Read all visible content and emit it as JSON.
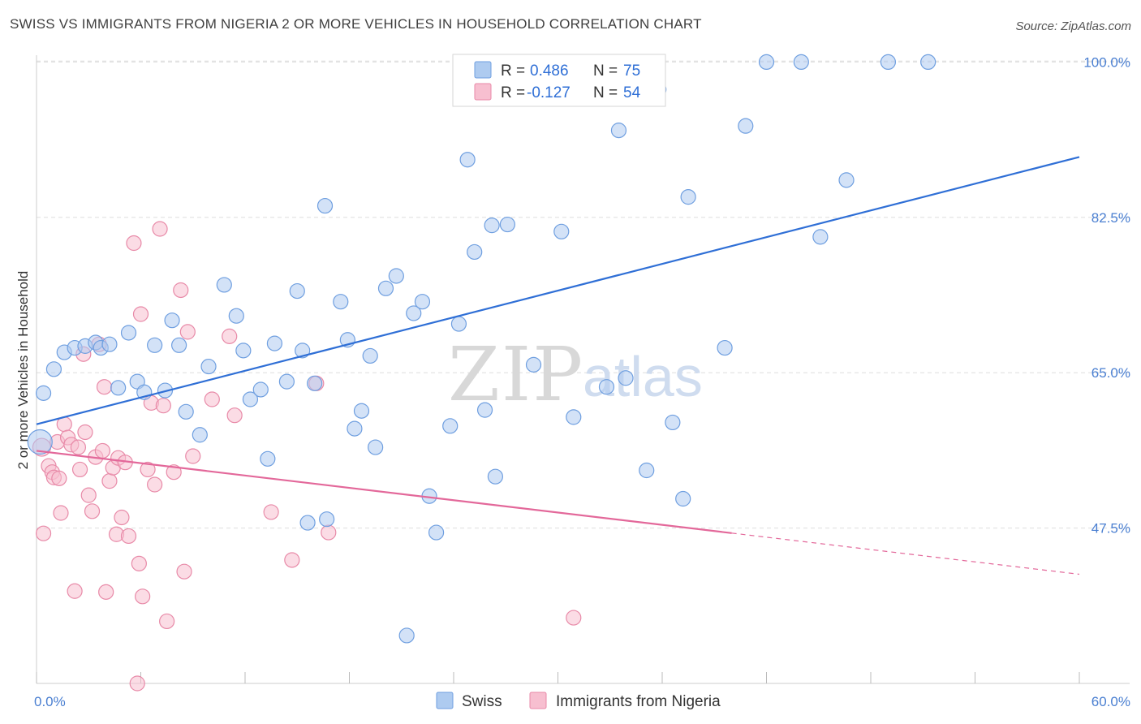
{
  "header": {
    "title": "SWISS VS IMMIGRANTS FROM NIGERIA 2 OR MORE VEHICLES IN HOUSEHOLD CORRELATION CHART",
    "source": "Source: ZipAtlas.com"
  },
  "watermark": {
    "part1": "ZIP",
    "part2": "atlas"
  },
  "colors": {
    "swiss_fill": "#aecbf0",
    "swiss_stroke": "#6f9fe0",
    "swiss_line": "#2f6fd6",
    "nigeria_fill": "#f7bfd0",
    "nigeria_stroke": "#e88aa8",
    "nigeria_line": "#e3689a",
    "grid": "#dddddd",
    "tick_label": "#4a7fd1"
  },
  "legend": {
    "rows": [
      {
        "r_label": "R =",
        "r_value": "0.486",
        "n_label": "N =",
        "n_value": "75"
      },
      {
        "r_label": "R =",
        "r_value": "-0.127",
        "n_label": "N =",
        "n_value": "54"
      }
    ]
  },
  "bottom_legend": {
    "swiss": "Swiss",
    "nigeria": "Immigrants from Nigeria"
  },
  "chart_data": {
    "type": "scatter",
    "title": "SWISS VS IMMIGRANTS FROM NIGERIA 2 OR MORE VEHICLES IN HOUSEHOLD CORRELATION CHART",
    "ylabel": "2 or more Vehicles in Household",
    "xlabel": "",
    "xlim": [
      0,
      60
    ],
    "ylim": [
      30,
      101.5
    ],
    "x_tick_labels": [
      "0.0%",
      "60.0%"
    ],
    "y_ticks": [
      47.5,
      65.0,
      82.5,
      100.0
    ],
    "y_tick_labels": [
      "47.5%",
      "65.0%",
      "82.5%",
      "100.0%"
    ],
    "grid": "horizontal dashed",
    "legend_position": "top-center",
    "series": [
      {
        "name": "Swiss",
        "R": 0.486,
        "N": 75,
        "trend": {
          "x": [
            0,
            60
          ],
          "y": [
            59.2,
            89.3
          ],
          "dashed_from": null
        },
        "points": [
          [
            0.2,
            57.2
          ],
          [
            0.4,
            62.7
          ],
          [
            1.0,
            65.4
          ],
          [
            1.6,
            67.3
          ],
          [
            2.2,
            67.8
          ],
          [
            2.8,
            68.0
          ],
          [
            3.4,
            68.4
          ],
          [
            3.7,
            67.8
          ],
          [
            4.2,
            68.2
          ],
          [
            4.7,
            63.3
          ],
          [
            5.3,
            69.5
          ],
          [
            5.8,
            64.0
          ],
          [
            6.2,
            62.8
          ],
          [
            6.8,
            68.1
          ],
          [
            7.4,
            63.0
          ],
          [
            7.8,
            70.9
          ],
          [
            8.2,
            68.1
          ],
          [
            8.6,
            60.6
          ],
          [
            9.4,
            58.0
          ],
          [
            9.9,
            65.7
          ],
          [
            10.8,
            74.9
          ],
          [
            11.5,
            71.4
          ],
          [
            11.9,
            67.5
          ],
          [
            12.3,
            62.0
          ],
          [
            12.9,
            63.1
          ],
          [
            13.3,
            55.3
          ],
          [
            13.7,
            68.3
          ],
          [
            14.4,
            64.0
          ],
          [
            15.0,
            74.2
          ],
          [
            15.3,
            67.5
          ],
          [
            15.6,
            48.1
          ],
          [
            16.0,
            63.8
          ],
          [
            16.6,
            83.8
          ],
          [
            16.7,
            48.5
          ],
          [
            17.5,
            73.0
          ],
          [
            17.9,
            68.7
          ],
          [
            18.3,
            58.7
          ],
          [
            18.7,
            60.7
          ],
          [
            19.2,
            66.9
          ],
          [
            19.5,
            56.6
          ],
          [
            20.1,
            74.5
          ],
          [
            20.7,
            75.9
          ],
          [
            21.3,
            35.4
          ],
          [
            21.7,
            71.7
          ],
          [
            22.2,
            73.0
          ],
          [
            22.6,
            51.1
          ],
          [
            23.0,
            47.0
          ],
          [
            23.8,
            59.0
          ],
          [
            24.3,
            70.5
          ],
          [
            24.8,
            89.0
          ],
          [
            25.2,
            78.6
          ],
          [
            25.8,
            60.8
          ],
          [
            26.2,
            81.6
          ],
          [
            26.4,
            53.3
          ],
          [
            27.1,
            81.7
          ],
          [
            28.6,
            65.9
          ],
          [
            30.2,
            80.9
          ],
          [
            30.9,
            60.0
          ],
          [
            32.1,
            100.0
          ],
          [
            32.8,
            63.4
          ],
          [
            33.5,
            92.3
          ],
          [
            33.9,
            64.4
          ],
          [
            35.1,
            54.0
          ],
          [
            35.8,
            96.9
          ],
          [
            36.6,
            59.4
          ],
          [
            37.2,
            50.8
          ],
          [
            37.5,
            84.8
          ],
          [
            39.6,
            67.8
          ],
          [
            40.8,
            92.8
          ],
          [
            42.0,
            100.0
          ],
          [
            44.0,
            100.0
          ],
          [
            45.1,
            80.3
          ],
          [
            46.6,
            86.7
          ],
          [
            49.0,
            100.0
          ],
          [
            51.3,
            100.0
          ]
        ]
      },
      {
        "name": "Immigrants from Nigeria",
        "R": -0.127,
        "N": 54,
        "trend": {
          "x": [
            0,
            60
          ],
          "y": [
            56.2,
            42.3
          ],
          "dashed_from": 40.0
        },
        "points": [
          [
            0.3,
            56.6
          ],
          [
            0.4,
            46.9
          ],
          [
            0.7,
            54.5
          ],
          [
            0.9,
            53.8
          ],
          [
            1.0,
            53.2
          ],
          [
            1.2,
            57.2
          ],
          [
            1.3,
            53.1
          ],
          [
            1.4,
            49.2
          ],
          [
            1.6,
            59.2
          ],
          [
            1.8,
            57.7
          ],
          [
            2.0,
            56.9
          ],
          [
            2.2,
            40.4
          ],
          [
            2.4,
            56.6
          ],
          [
            2.5,
            54.1
          ],
          [
            2.7,
            67.1
          ],
          [
            2.8,
            58.3
          ],
          [
            3.0,
            51.2
          ],
          [
            3.2,
            49.4
          ],
          [
            3.4,
            55.5
          ],
          [
            3.6,
            68.2
          ],
          [
            3.8,
            56.2
          ],
          [
            3.9,
            63.4
          ],
          [
            4.0,
            40.3
          ],
          [
            4.2,
            52.8
          ],
          [
            4.4,
            54.3
          ],
          [
            4.6,
            46.8
          ],
          [
            4.7,
            55.4
          ],
          [
            4.9,
            48.7
          ],
          [
            5.1,
            54.9
          ],
          [
            5.3,
            46.6
          ],
          [
            5.6,
            79.6
          ],
          [
            5.9,
            43.5
          ],
          [
            6.0,
            71.6
          ],
          [
            6.1,
            39.8
          ],
          [
            6.4,
            54.1
          ],
          [
            6.6,
            61.6
          ],
          [
            6.8,
            52.4
          ],
          [
            7.1,
            81.2
          ],
          [
            7.3,
            61.3
          ],
          [
            7.5,
            37.0
          ],
          [
            7.9,
            53.8
          ],
          [
            8.3,
            74.3
          ],
          [
            8.5,
            42.6
          ],
          [
            8.7,
            69.6
          ],
          [
            9.0,
            55.6
          ],
          [
            10.1,
            62.0
          ],
          [
            11.1,
            69.1
          ],
          [
            11.4,
            60.2
          ],
          [
            13.5,
            49.3
          ],
          [
            14.7,
            43.9
          ],
          [
            16.1,
            63.8
          ],
          [
            16.8,
            47.0
          ],
          [
            30.9,
            37.4
          ],
          [
            5.8,
            30.0
          ]
        ]
      }
    ]
  }
}
